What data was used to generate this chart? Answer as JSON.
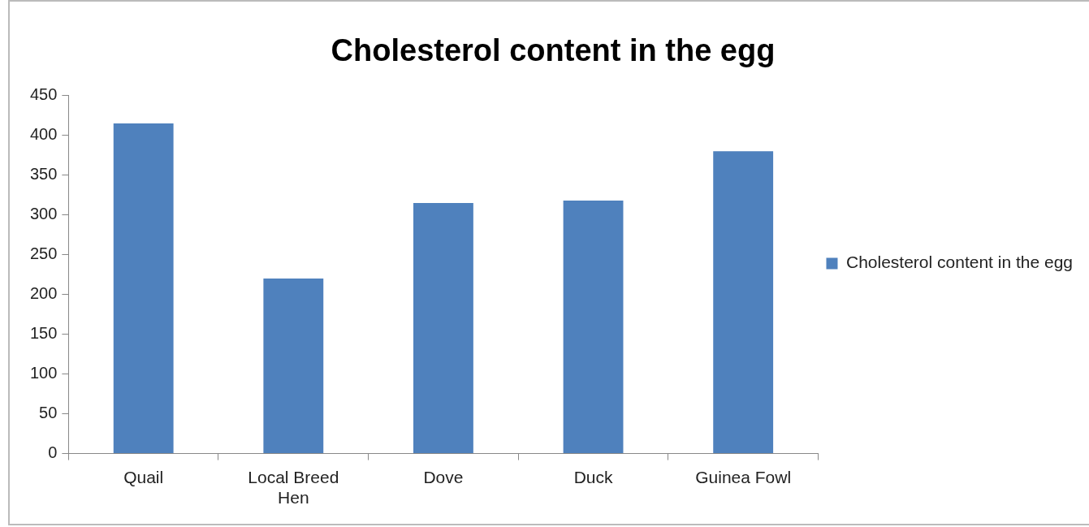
{
  "chart_data": {
    "type": "bar",
    "title": "Cholesterol content in the egg",
    "categories": [
      "Quail",
      "Local Breed Hen",
      "Dove",
      "Duck",
      "Guinea Fowl"
    ],
    "series": [
      {
        "name": "Cholesterol content in the egg",
        "color": "#4f81bd",
        "values": [
          415,
          220,
          315,
          318,
          380
        ]
      }
    ],
    "ylim": [
      0,
      450
    ],
    "yticks": [
      0,
      50,
      100,
      150,
      200,
      250,
      300,
      350,
      400,
      450
    ],
    "grid": false,
    "legend": "right"
  }
}
